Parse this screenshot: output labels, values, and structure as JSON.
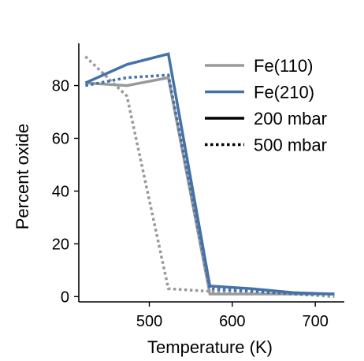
{
  "chart_data": {
    "type": "line",
    "xlabel": "Temperature (K)",
    "ylabel": "Percent oxide",
    "xlim": [
      415,
      735
    ],
    "ylim": [
      -2,
      96
    ],
    "xticks": [
      500,
      600,
      700
    ],
    "yticks": [
      0,
      20,
      40,
      60,
      80
    ],
    "grid": false,
    "legend_position": "top-right",
    "colors": {
      "fe110": "#999999",
      "fe210": "#4472a8",
      "legend_line": "#000000"
    },
    "legend": [
      {
        "label": "Fe(110)",
        "color": "#999999",
        "style": "solid"
      },
      {
        "label": "Fe(210)",
        "color": "#4472a8",
        "style": "solid"
      },
      {
        "label": "200 mbar",
        "color": "#000000",
        "style": "solid"
      },
      {
        "label": "500 mbar",
        "color": "#000000",
        "style": "dotted"
      }
    ],
    "series": [
      {
        "surface": "Fe(110)",
        "pressure": "200 mbar",
        "color": "#999999",
        "style": "solid",
        "x": [
          423,
          473,
          523,
          573,
          623,
          673,
          723
        ],
        "y": [
          81,
          80,
          83,
          1,
          1,
          1,
          1
        ]
      },
      {
        "surface": "Fe(110)",
        "pressure": "500 mbar",
        "color": "#999999",
        "style": "dotted",
        "x": [
          423,
          473,
          523,
          573,
          623,
          673,
          723
        ],
        "y": [
          91,
          76,
          3,
          2,
          2,
          1,
          0
        ]
      },
      {
        "surface": "Fe(210)",
        "pressure": "200 mbar",
        "color": "#4472a8",
        "style": "solid",
        "x": [
          423,
          473,
          523,
          573,
          623,
          673,
          723
        ],
        "y": [
          81,
          88,
          92,
          4,
          3,
          1.5,
          1
        ]
      },
      {
        "surface": "Fe(210)",
        "pressure": "500 mbar",
        "color": "#4472a8",
        "style": "dotted",
        "x": [
          423,
          473,
          523,
          573,
          623,
          673,
          723
        ],
        "y": [
          80,
          83,
          84,
          3,
          2,
          1,
          1
        ]
      }
    ]
  }
}
